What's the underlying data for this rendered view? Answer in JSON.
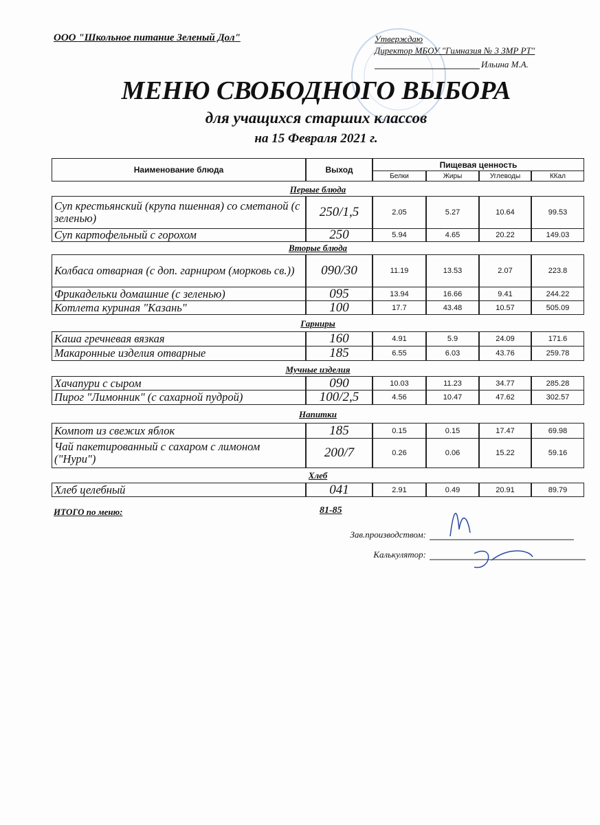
{
  "header": {
    "organization": "ООО \"Школьное питание Зеленый Дол\"",
    "approval": {
      "label": "Утверждаю",
      "position": "Директор МБОУ \"Гимназия № 3 ЗМР РТ\"",
      "name": "Ильина М.А."
    }
  },
  "title": "МЕНЮ СВОБОДНОГО ВЫБОРА",
  "subtitle": "для учащихся старших классов",
  "date": "на 15 Февраля 2021 г.",
  "table": {
    "columns": {
      "name": "Наименование блюда",
      "yield": "Выход",
      "nutrition": "Пищевая ценность",
      "nutrients": [
        "Белки",
        "Жиры",
        "Углеводы",
        "ККал"
      ]
    },
    "sections": [
      {
        "title": "Первые блюда",
        "rows": [
          [
            "Суп крестьянский (крупа пшенная) со сметаной (с зеленью)",
            "250/1,5",
            "2.05",
            "5.27",
            "10.64",
            "99.53"
          ],
          [
            "Суп картофельный с горохом",
            "250",
            "5.94",
            "4.65",
            "20.22",
            "149.03"
          ]
        ]
      },
      {
        "title": "Вторые блюда",
        "rows": [
          [
            "Колбаса отварная (с доп. гарниром (морковь св.))",
            "090/30",
            "11.19",
            "13.53",
            "2.07",
            "223.8"
          ],
          [
            "Фрикадельки домашние (с зеленью)",
            "095",
            "13.94",
            "16.66",
            "9.41",
            "244.22"
          ],
          [
            "Котлета куриная \"Казань\"",
            "100",
            "17.7",
            "43.48",
            "10.57",
            "505.09"
          ]
        ]
      },
      {
        "title": "Гарниры",
        "rows": [
          [
            "Каша гречневая вязкая",
            "160",
            "4.91",
            "5.9",
            "24.09",
            "171.6"
          ],
          [
            "Макаронные изделия отварные",
            "185",
            "6.55",
            "6.03",
            "43.76",
            "259.78"
          ]
        ]
      },
      {
        "title": "Мучные изделия",
        "rows": [
          [
            "Хачапури с сыром",
            "090",
            "10.03",
            "11.23",
            "34.77",
            "285.28"
          ],
          [
            "Пирог \"Лимонник\" (с сахарной пудрой)",
            "100/2,5",
            "4.56",
            "10.47",
            "47.62",
            "302.57"
          ]
        ]
      },
      {
        "title": "Напитки",
        "rows": [
          [
            "Компот из свежих яблок",
            "185",
            "0.15",
            "0.15",
            "17.47",
            "69.98"
          ],
          [
            "Чай пакетированный с сахаром с лимоном (\"Нури\")",
            "200/7",
            "0.26",
            "0.06",
            "15.22",
            "59.16"
          ]
        ]
      },
      {
        "title": "Хлеб",
        "rows": [
          [
            "Хлеб  целебный",
            "041",
            "2.91",
            "0.49",
            "20.91",
            "89.79"
          ]
        ]
      }
    ]
  },
  "total": {
    "label": "ИТОГО по меню:",
    "value": "81-85"
  },
  "signatures": [
    "Зав.производством:",
    "Калькулятор:"
  ]
}
